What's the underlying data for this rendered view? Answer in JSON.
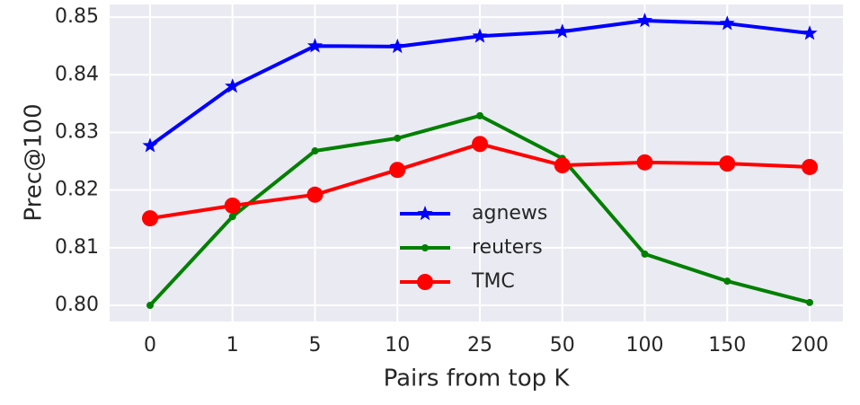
{
  "chart_data": {
    "type": "line",
    "x_label": "Pairs from top K",
    "y_label": "Prec@100",
    "categories": [
      "0",
      "1",
      "5",
      "10",
      "25",
      "50",
      "100",
      "150",
      "200"
    ],
    "series": [
      {
        "name": "agnews",
        "color": "#0000ff",
        "marker": "star",
        "values": [
          0.8277,
          0.838,
          0.845,
          0.8449,
          0.8467,
          0.8475,
          0.8494,
          0.8489,
          0.8472
        ]
      },
      {
        "name": "reuters",
        "color": "#008000",
        "marker": "dot",
        "values": [
          0.8,
          0.8154,
          0.8268,
          0.829,
          0.8329,
          0.8255,
          0.8089,
          0.8042,
          0.8005
        ]
      },
      {
        "name": "TMC",
        "color": "#ff0000",
        "marker": "circle",
        "values": [
          0.8151,
          0.8173,
          0.8192,
          0.8235,
          0.828,
          0.8243,
          0.8248,
          0.8246,
          0.824
        ]
      }
    ],
    "ylim": [
      0.7972,
      0.8522
    ],
    "yticks": [
      {
        "value": 0.8,
        "label": "0.80"
      },
      0.81,
      0.82,
      0.83,
      0.84,
      0.85
    ],
    "grid": true,
    "legend_loc": "lower center"
  }
}
